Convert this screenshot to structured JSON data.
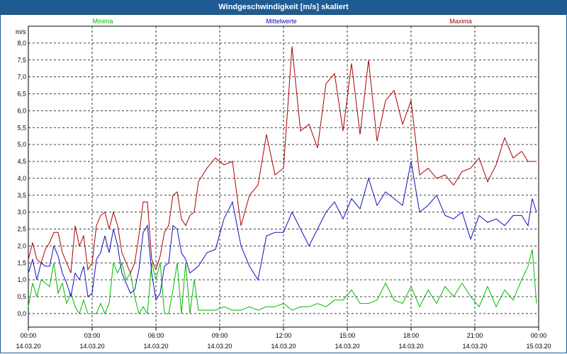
{
  "window": {
    "title": "Windgeschwindigkeit [m/s] skaliert"
  },
  "chart_data": {
    "type": "line",
    "title": "Windgeschwindigkeit [m/s] skaliert",
    "ylabel": "m/s",
    "ylim": [
      -0.4,
      8.5
    ],
    "xlim": [
      0,
      24
    ],
    "grid": true,
    "legend_position": "top",
    "y_ticks": [
      "0,0",
      "0,5",
      "1,0",
      "1,5",
      "2,0",
      "2,5",
      "3,0",
      "3,5",
      "4,0",
      "4,5",
      "5,0",
      "5,5",
      "6,0",
      "6,5",
      "7,0",
      "7,5",
      "8,0"
    ],
    "x_ticks": [
      {
        "time": "00:00",
        "date": "14.03.20"
      },
      {
        "time": "03:00",
        "date": "14.03.20"
      },
      {
        "time": "06:00",
        "date": "14.03.20"
      },
      {
        "time": "09:00",
        "date": "14.03.20"
      },
      {
        "time": "12:00",
        "date": "14.03.20"
      },
      {
        "time": "15:00",
        "date": "14.03.20"
      },
      {
        "time": "18:00",
        "date": "14.03.20"
      },
      {
        "time": "21:00",
        "date": "14.03.20"
      },
      {
        "time": "00:00",
        "date": "15.03.20"
      }
    ],
    "series": [
      {
        "name": "Minima",
        "color": "#00bb00",
        "x": [
          0,
          0.2,
          0.4,
          0.6,
          0.8,
          1,
          1.2,
          1.4,
          1.6,
          1.8,
          2,
          2.2,
          2.4,
          2.6,
          2.8,
          3,
          3.2,
          3.4,
          3.6,
          3.8,
          4,
          4.2,
          4.4,
          4.6,
          4.8,
          5,
          5.2,
          5.4,
          5.6,
          5.8,
          6,
          6.2,
          6.4,
          6.6,
          6.8,
          7,
          7.2,
          7.4,
          7.6,
          7.8,
          8,
          8.4,
          8.8,
          9.2,
          9.6,
          10,
          10.4,
          10.8,
          11.2,
          11.6,
          12,
          12.4,
          12.8,
          13.2,
          13.6,
          14,
          14.4,
          14.8,
          15.2,
          15.6,
          16,
          16.4,
          16.8,
          17.2,
          17.6,
          18,
          18.4,
          18.8,
          19.2,
          19.6,
          20,
          20.4,
          20.8,
          21.2,
          21.6,
          22,
          22.4,
          22.8,
          23.2,
          23.5,
          23.7,
          23.9
        ],
        "y": [
          0.2,
          0.9,
          0.5,
          1.0,
          0.9,
          0.8,
          1.5,
          0.6,
          0.9,
          0.3,
          0.6,
          0.2,
          0.0,
          0.4,
          0.0,
          0.0,
          0.0,
          0.3,
          0.0,
          0.3,
          1.5,
          1.2,
          1.5,
          1.0,
          1.2,
          0.5,
          0.0,
          0.2,
          0.0,
          1.5,
          1.0,
          1.5,
          0.0,
          0.0,
          0.7,
          1.5,
          0.0,
          1.5,
          0.0,
          1.0,
          0.1,
          0.1,
          0.1,
          0.2,
          0.1,
          0.1,
          0.2,
          0.1,
          0.2,
          0.2,
          0.3,
          0.1,
          0.2,
          0.2,
          0.3,
          0.2,
          0.4,
          0.4,
          0.7,
          0.3,
          0.3,
          0.4,
          0.9,
          0.4,
          0.3,
          0.8,
          0.2,
          0.7,
          0.3,
          0.8,
          0.5,
          0.9,
          0.5,
          0.2,
          0.8,
          0.2,
          0.7,
          0.4,
          1.0,
          1.4,
          1.9,
          0.3
        ]
      },
      {
        "name": "Mittelwerte",
        "color": "#1010bb",
        "x": [
          0,
          0.2,
          0.4,
          0.6,
          0.8,
          1,
          1.2,
          1.4,
          1.6,
          1.8,
          2,
          2.2,
          2.4,
          2.6,
          2.8,
          3,
          3.2,
          3.4,
          3.6,
          3.8,
          4,
          4.2,
          4.4,
          4.6,
          4.8,
          5,
          5.2,
          5.4,
          5.6,
          5.8,
          6,
          6.2,
          6.4,
          6.6,
          6.8,
          7,
          7.2,
          7.4,
          7.6,
          7.8,
          8,
          8.4,
          8.8,
          9.2,
          9.6,
          10,
          10.4,
          10.8,
          11.2,
          11.6,
          12,
          12.4,
          12.8,
          13.2,
          13.6,
          14,
          14.4,
          14.8,
          15.2,
          15.6,
          16,
          16.4,
          16.8,
          17.2,
          17.6,
          18,
          18.4,
          18.8,
          19.2,
          19.6,
          20,
          20.4,
          20.8,
          21.2,
          21.6,
          22,
          22.4,
          22.8,
          23.2,
          23.5,
          23.7,
          23.9
        ],
        "y": [
          1.2,
          1.6,
          1.0,
          1.5,
          1.4,
          1.4,
          2.0,
          1.7,
          1.2,
          0.9,
          0.5,
          1.2,
          1.0,
          1.4,
          0.5,
          0.6,
          1.6,
          1.8,
          2.3,
          1.8,
          2.5,
          2.0,
          1.2,
          0.9,
          0.6,
          0.7,
          1.3,
          2.4,
          2.6,
          1.2,
          0.4,
          0.6,
          1.4,
          1.5,
          2.6,
          2.5,
          1.8,
          1.6,
          1.2,
          1.3,
          1.4,
          1.8,
          1.9,
          2.8,
          3.3,
          2.0,
          1.4,
          1.0,
          2.3,
          2.4,
          2.4,
          3.0,
          2.5,
          2.0,
          2.5,
          3.0,
          3.3,
          2.8,
          3.4,
          3.1,
          4.0,
          3.2,
          3.6,
          3.4,
          3.2,
          4.5,
          3.0,
          3.2,
          3.5,
          2.9,
          2.8,
          3.0,
          2.2,
          2.9,
          2.7,
          2.8,
          2.6,
          2.9,
          2.9,
          2.6,
          3.4,
          3.0
        ]
      },
      {
        "name": "Maxima",
        "color": "#aa0000",
        "x": [
          0,
          0.2,
          0.4,
          0.6,
          0.8,
          1,
          1.2,
          1.4,
          1.6,
          1.8,
          2,
          2.2,
          2.4,
          2.6,
          2.8,
          3,
          3.2,
          3.4,
          3.6,
          3.8,
          4,
          4.2,
          4.4,
          4.6,
          4.8,
          5,
          5.2,
          5.4,
          5.6,
          5.8,
          6,
          6.2,
          6.4,
          6.6,
          6.8,
          7,
          7.2,
          7.4,
          7.6,
          7.8,
          8,
          8.4,
          8.8,
          9.2,
          9.6,
          10,
          10.4,
          10.8,
          11.2,
          11.6,
          12,
          12.4,
          12.8,
          13.2,
          13.6,
          14,
          14.4,
          14.8,
          15.2,
          15.6,
          16,
          16.4,
          16.8,
          17.2,
          17.6,
          18,
          18.4,
          18.8,
          19.2,
          19.6,
          20,
          20.4,
          20.8,
          21.2,
          21.6,
          22,
          22.4,
          22.8,
          23.2,
          23.5,
          23.7,
          23.9
        ],
        "y": [
          1.6,
          2.1,
          1.6,
          1.5,
          1.9,
          2.1,
          2.4,
          2.4,
          1.8,
          1.5,
          1.2,
          2.6,
          2.0,
          2.3,
          1.3,
          1.5,
          2.6,
          2.9,
          3.0,
          2.5,
          3.0,
          2.6,
          1.8,
          1.5,
          1.2,
          1.5,
          2.3,
          3.3,
          3.3,
          1.6,
          1.3,
          1.7,
          2.4,
          2.6,
          3.5,
          3.6,
          2.8,
          2.6,
          2.9,
          3.0,
          3.9,
          4.3,
          4.6,
          4.4,
          4.5,
          2.6,
          3.5,
          3.8,
          5.3,
          4.1,
          4.3,
          7.9,
          5.4,
          5.6,
          4.9,
          6.8,
          7.1,
          5.4,
          7.4,
          5.3,
          7.5,
          5.1,
          6.3,
          6.6,
          5.6,
          6.3,
          4.1,
          4.3,
          4.0,
          4.1,
          3.8,
          4.2,
          4.3,
          4.6,
          3.9,
          4.4,
          5.2,
          4.6,
          4.8,
          4.5,
          4.5,
          4.5
        ]
      }
    ]
  }
}
